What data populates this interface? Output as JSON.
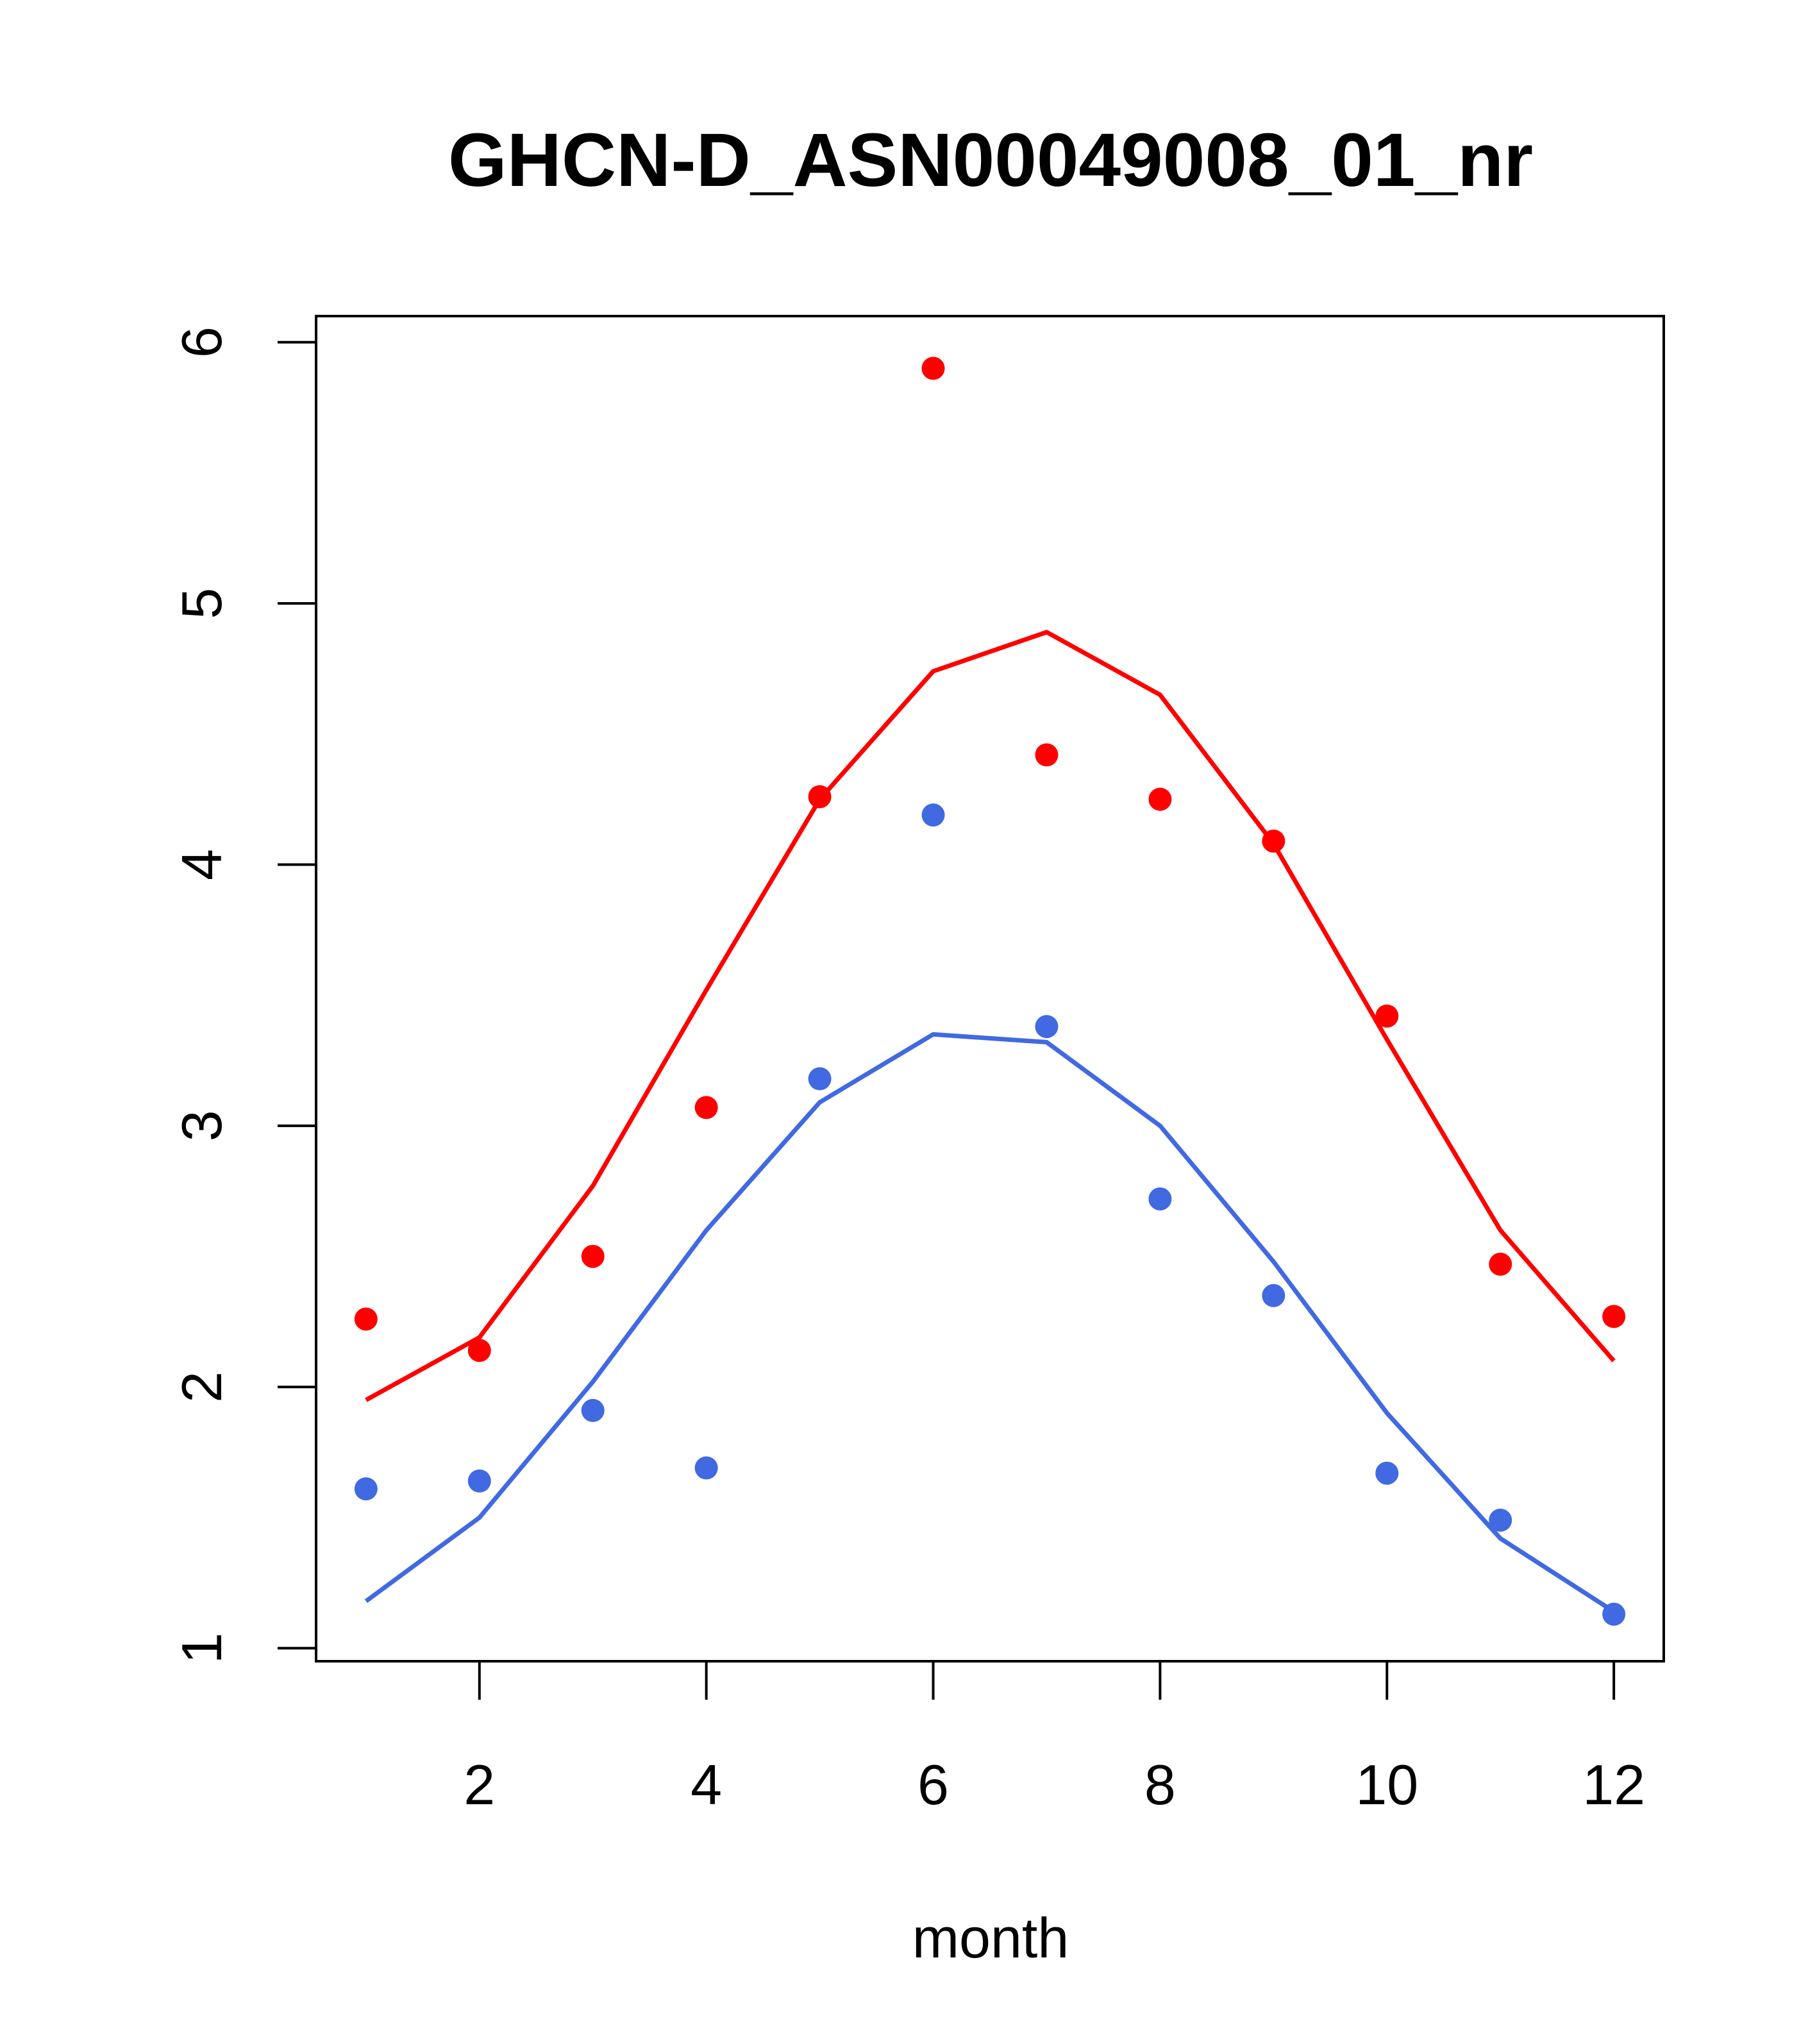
{
  "chart_data": {
    "type": "line",
    "title": "GHCN-D_ASN00049008_01_nr",
    "xlabel": "month",
    "ylabel": "",
    "xlim": [
      0.56,
      12.44
    ],
    "ylim": [
      0.95,
      6.1
    ],
    "xticks": [
      2,
      4,
      6,
      8,
      10,
      12
    ],
    "yticks": [
      1,
      2,
      3,
      4,
      5,
      6
    ],
    "grid": false,
    "legend": "none",
    "series": [
      {
        "color": "#ff0000",
        "x": [
          1,
          2,
          3,
          4,
          5,
          6,
          7,
          8,
          9,
          10,
          11,
          12
        ],
        "line": [
          1.95,
          2.19,
          2.77,
          3.52,
          4.25,
          4.74,
          4.89,
          4.65,
          4.08,
          3.33,
          2.6,
          2.1
        ],
        "points": [
          2.26,
          2.14,
          2.5,
          3.07,
          4.26,
          5.9,
          4.42,
          4.25,
          4.09,
          3.42,
          2.47,
          2.27
        ]
      },
      {
        "color": "#4169e1",
        "x": [
          1,
          2,
          3,
          4,
          5,
          6,
          7,
          8,
          9,
          10,
          11,
          12
        ],
        "line": [
          1.18,
          1.5,
          2.02,
          2.6,
          3.09,
          3.35,
          3.32,
          3.0,
          2.48,
          1.9,
          1.42,
          1.14
        ],
        "points": [
          1.61,
          1.64,
          1.91,
          1.69,
          3.18,
          4.19,
          3.38,
          2.72,
          2.35,
          1.67,
          1.49,
          1.13
        ]
      }
    ]
  }
}
